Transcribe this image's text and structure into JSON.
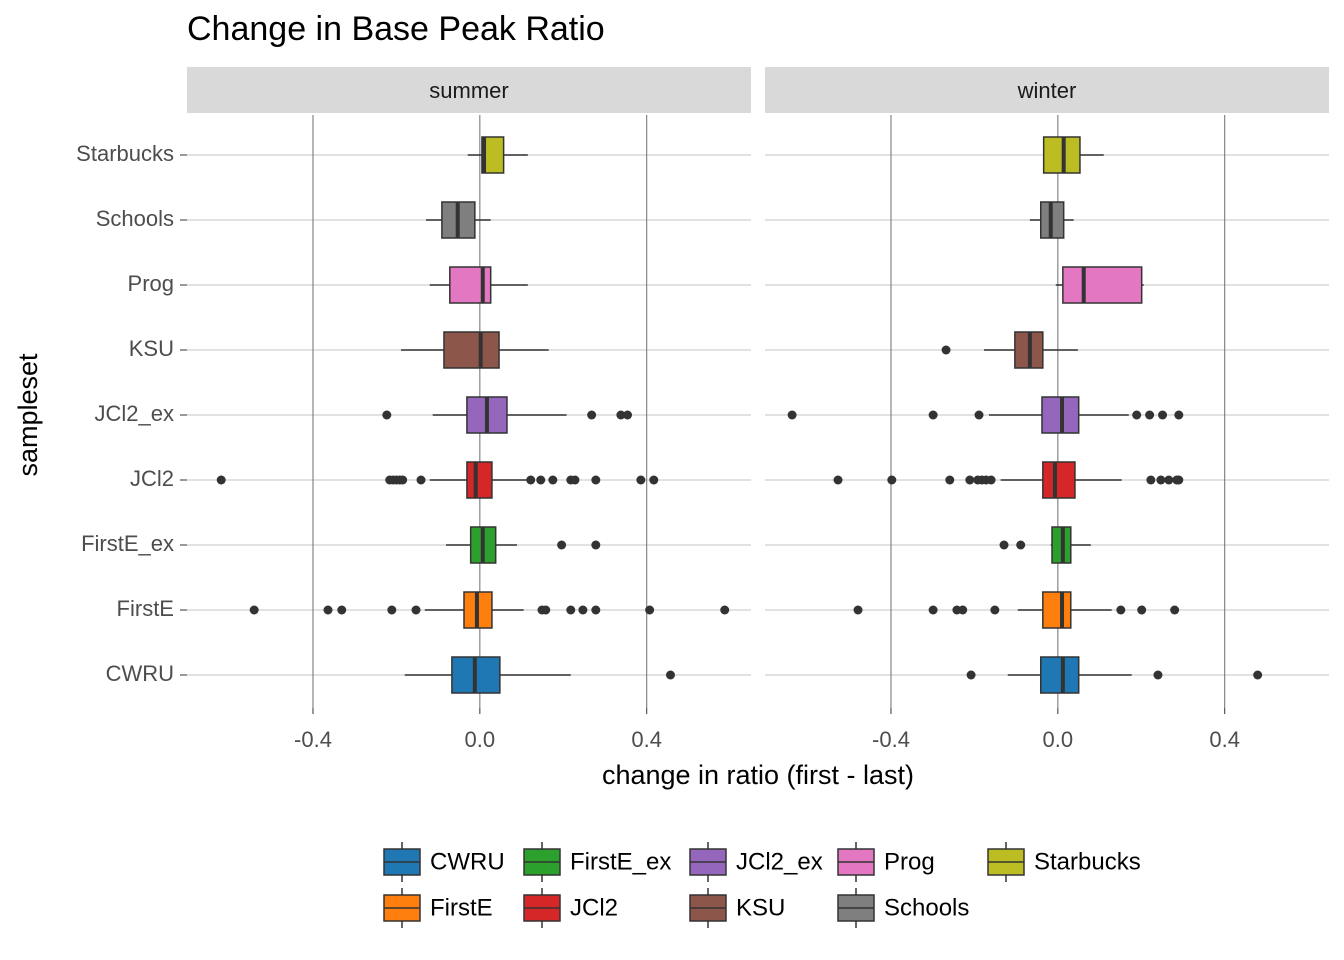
{
  "chart_data": {
    "type": "boxplot",
    "title": "Change in Base Peak Ratio",
    "x_label": "change in ratio (first - last)",
    "y_label": "sampleset",
    "categories": [
      "CWRU",
      "FirstE",
      "FirstE_ex",
      "JCl2",
      "JCl2_ex",
      "KSU",
      "Prog",
      "Schools",
      "Starbucks"
    ],
    "colors": [
      "#1f77b4",
      "#ff7f0e",
      "#2ca02c",
      "#d62728",
      "#9467bd",
      "#8c564b",
      "#e377c2",
      "#7f7f7f",
      "#bcbd22"
    ],
    "xlim": [
      -0.702,
      0.65
    ],
    "xticks": [
      -0.4,
      {
        "value": 0,
        "label": "0.0"
      },
      0.4
    ],
    "grid": true,
    "legend_position": "bottom",
    "facets": [
      {
        "label": "summer",
        "boxes": [
          {
            "min": -0.18,
            "q1": -0.067,
            "median": -0.012,
            "q3": 0.048,
            "max": 0.218,
            "outliers": [
              0.457
            ]
          },
          {
            "min": -0.132,
            "q1": -0.038,
            "median": -0.007,
            "q3": 0.029,
            "max": 0.105,
            "outliers": [
              -0.541,
              -0.364,
              -0.331,
              -0.211,
              -0.153,
              0.149,
              0.158,
              0.218,
              0.247,
              0.278,
              0.407,
              0.587
            ]
          },
          {
            "min": -0.081,
            "q1": -0.022,
            "median": 0.007,
            "q3": 0.038,
            "max": 0.089,
            "outliers": [
              0.196,
              0.278
            ]
          },
          {
            "min": -0.12,
            "q1": -0.031,
            "median": -0.01,
            "q3": 0.029,
            "max": 0.12,
            "outliers": [
              -0.62,
              -0.216,
              -0.208,
              -0.2,
              -0.192,
              -0.185,
              -0.141,
              0.122,
              0.146,
              0.175,
              0.218,
              0.228,
              0.278,
              0.386,
              0.417
            ]
          },
          {
            "min": -0.113,
            "q1": -0.031,
            "median": 0.017,
            "q3": 0.065,
            "max": 0.208,
            "outliers": [
              -0.223,
              0.268,
              0.338,
              0.354
            ]
          },
          {
            "min": -0.189,
            "q1": -0.086,
            "median": 0.002,
            "q3": 0.046,
            "max": 0.165,
            "outliers": []
          },
          {
            "min": -0.12,
            "q1": -0.072,
            "median": 0.007,
            "q3": 0.026,
            "max": 0.115,
            "outliers": []
          },
          {
            "min": -0.129,
            "q1": -0.091,
            "median": -0.053,
            "q3": -0.012,
            "max": 0.026,
            "outliers": []
          },
          {
            "min": -0.029,
            "q1": 0.005,
            "median": 0.01,
            "q3": 0.057,
            "max": 0.115,
            "outliers": []
          }
        ]
      },
      {
        "label": "winter",
        "boxes": [
          {
            "min": -0.12,
            "q1": -0.041,
            "median": 0.012,
            "q3": 0.05,
            "max": 0.177,
            "outliers": [
              -0.208,
              0.24,
              0.479
            ]
          },
          {
            "min": -0.096,
            "q1": -0.036,
            "median": 0.01,
            "q3": 0.031,
            "max": 0.129,
            "outliers": [
              -0.479,
              -0.299,
              -0.242,
              -0.228,
              -0.151,
              0.151,
              0.201,
              0.28
            ]
          },
          {
            "min": -0.017,
            "q1": -0.014,
            "median": 0.012,
            "q3": 0.031,
            "max": 0.079,
            "outliers": [
              -0.129,
              -0.089
            ]
          },
          {
            "min": -0.137,
            "q1": -0.036,
            "median": -0.007,
            "q3": 0.041,
            "max": 0.153,
            "outliers": [
              -0.527,
              -0.398,
              -0.259,
              -0.211,
              -0.192,
              -0.182,
              -0.172,
              -0.16,
              0.223,
              0.247,
              0.266,
              0.285,
              0.29
            ]
          },
          {
            "min": -0.165,
            "q1": -0.038,
            "median": 0.01,
            "q3": 0.05,
            "max": 0.17,
            "outliers": [
              -0.637,
              -0.299,
              -0.189,
              0.189,
              0.22,
              0.251,
              0.29
            ]
          },
          {
            "min": -0.177,
            "q1": -0.103,
            "median": -0.067,
            "q3": -0.036,
            "max": 0.048,
            "outliers": [
              -0.268
            ]
          },
          {
            "min": -0.005,
            "q1": 0.012,
            "median": 0.062,
            "q3": 0.201,
            "max": 0.206,
            "outliers": []
          },
          {
            "min": -0.067,
            "q1": -0.041,
            "median": -0.017,
            "q3": 0.014,
            "max": 0.038,
            "outliers": []
          },
          {
            "min": -0.034,
            "q1": -0.034,
            "median": 0.014,
            "q3": 0.053,
            "max": 0.11,
            "outliers": []
          }
        ]
      }
    ]
  }
}
